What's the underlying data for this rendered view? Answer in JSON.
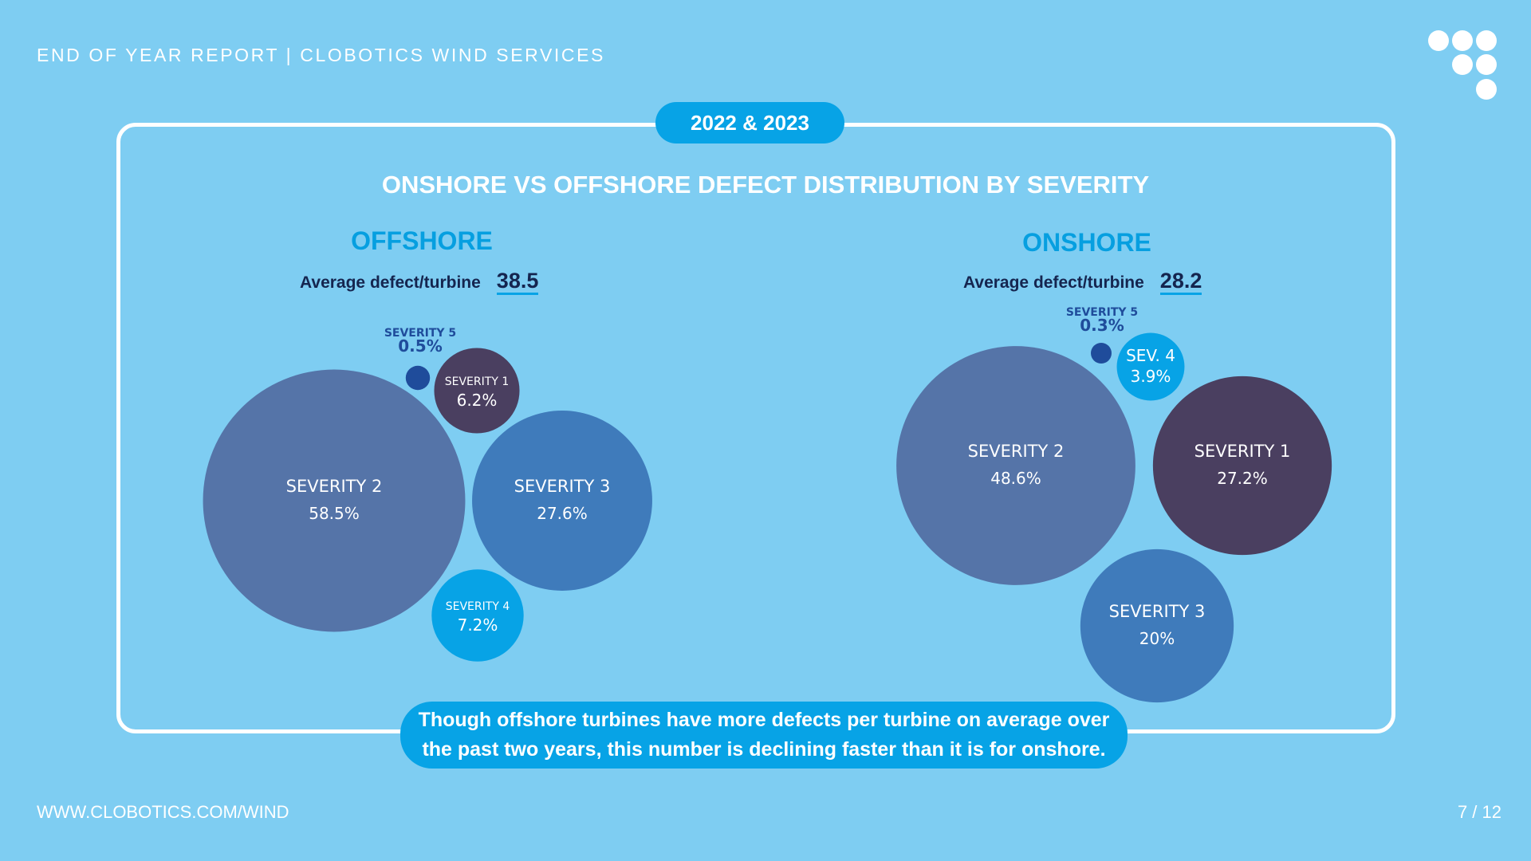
{
  "header": {
    "text": "END OF YEAR REPORT | CLOBOTICS WIND SERVICES"
  },
  "period_badge": "2022 & 2023",
  "chart_title": "ONSHORE VS OFFSHORE DEFECT DISTRIBUTION BY SEVERITY",
  "colors": {
    "background": "#7ecdf2",
    "accent": "#07a3e6",
    "severity_1": "#4a3f60",
    "severity_2": "#5574a8",
    "severity_3": "#3f7bbb",
    "severity_4": "#07a3e6",
    "severity_5": "#1f4c9b",
    "dark_text": "#15254f"
  },
  "chart_data": [
    {
      "type": "bubble",
      "title": "OFFSHORE",
      "avg_label": "Average defect/turbine",
      "avg_value": "38.5",
      "points": [
        {
          "label": "SEVERITY 2",
          "value": 58.5,
          "display": "58.5%"
        },
        {
          "label": "SEVERITY 3",
          "value": 27.6,
          "display": "27.6%"
        },
        {
          "label": "SEVERITY 4",
          "value": 7.2,
          "display": "7.2%"
        },
        {
          "label": "SEVERITY 1",
          "value": 6.2,
          "display": "6.2%"
        },
        {
          "label": "SEVERITY 5",
          "value": 0.5,
          "display": "0.5%"
        }
      ]
    },
    {
      "type": "bubble",
      "title": "ONSHORE",
      "avg_label": "Average defect/turbine",
      "avg_value": "28.2",
      "points": [
        {
          "label": "SEVERITY 2",
          "value": 48.6,
          "display": "48.6%"
        },
        {
          "label": "SEVERITY 1",
          "value": 27.2,
          "display": "27.2%"
        },
        {
          "label": "SEVERITY 3",
          "value": 20,
          "display": "20%"
        },
        {
          "label": "SEV. 4",
          "value": 3.9,
          "display": "3.9%"
        },
        {
          "label": "SEVERITY 5",
          "value": 0.3,
          "display": "0.3%"
        }
      ]
    }
  ],
  "footnote": "Though offshore turbines have more defects per turbine on average over the past two years, this number is declining faster than it is for onshore.",
  "footer": {
    "url": "WWW.CLOBOTICS.COM/WIND",
    "page": "7 / 12"
  }
}
